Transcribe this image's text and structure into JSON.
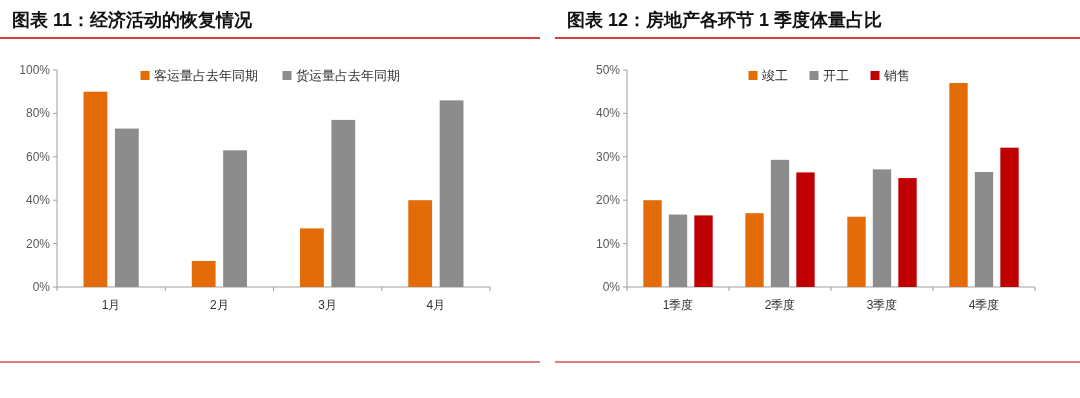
{
  "chart_data": [
    {
      "type": "bar",
      "title": "图表 11：经济活动的恢复情况",
      "categories": [
        "1月",
        "2月",
        "3月",
        "4月"
      ],
      "series": [
        {
          "name": "客运量占去年同期",
          "color": "#e36c09",
          "values": [
            90,
            12,
            27,
            40
          ]
        },
        {
          "name": "货运量占去年同期",
          "color": "#8c8c8c",
          "values": [
            73,
            63,
            77,
            86
          ]
        }
      ],
      "ylim": [
        0,
        100
      ],
      "yticks": [
        {
          "value": 0,
          "label": "0%"
        },
        {
          "value": 20,
          "label": "20%"
        },
        {
          "value": 40,
          "label": "40%"
        },
        {
          "value": 60,
          "label": "60%"
        },
        {
          "value": 80,
          "label": "80%"
        },
        {
          "value": 100,
          "label": "100%"
        }
      ],
      "legend": "top",
      "grid": false
    },
    {
      "type": "bar",
      "title": "图表 12：房地产各环节 1 季度体量占比",
      "categories": [
        "1季度",
        "2季度",
        "3季度",
        "4季度"
      ],
      "series": [
        {
          "name": "竣工",
          "color": "#e36c09",
          "values": [
            20,
            17,
            16.2,
            47
          ]
        },
        {
          "name": "开工",
          "color": "#8c8c8c",
          "values": [
            16.7,
            29.3,
            27.1,
            26.5
          ]
        },
        {
          "name": "销售",
          "color": "#c00000",
          "values": [
            16.5,
            26.4,
            25.1,
            32.1
          ]
        }
      ],
      "ylim": [
        0,
        50
      ],
      "yticks": [
        {
          "value": 0,
          "label": "0%"
        },
        {
          "value": 10,
          "label": "10%"
        },
        {
          "value": 20,
          "label": "20%"
        },
        {
          "value": 30,
          "label": "30%"
        },
        {
          "value": 40,
          "label": "40%"
        },
        {
          "value": 50,
          "label": "50%"
        }
      ],
      "legend": "top",
      "grid": false
    }
  ]
}
